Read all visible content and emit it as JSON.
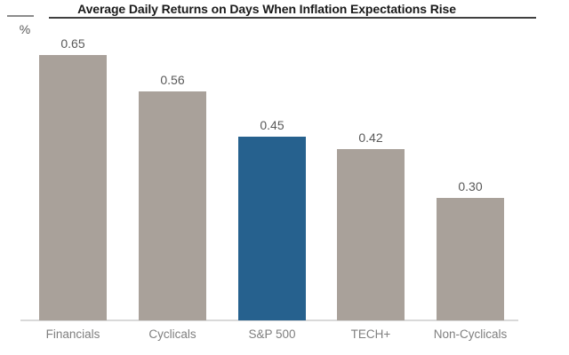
{
  "colors": {
    "background": "#ffffff",
    "bar_default": "#a9a19a",
    "bar_highlight": "#26618e",
    "title_text": "#1a1a1a",
    "title_underline": "#404040",
    "axis_dash": "#8c8c8c",
    "unit_text": "#595959",
    "value_label_text": "#595959",
    "category_label_text": "#7f7f7f",
    "baseline": "#d9d9d9"
  },
  "chart_data": {
    "type": "bar",
    "title": "Average Daily Returns on Days When Inflation Expectations Rise",
    "unit_label": "%",
    "xlabel": "",
    "ylabel": "%",
    "categories": [
      "Financials",
      "Cyclicals",
      "S&P 500",
      "TECH+",
      "Non-Cyclicals"
    ],
    "values": [
      0.65,
      0.56,
      0.45,
      0.42,
      0.3
    ],
    "value_labels": [
      "0.65",
      "0.56",
      "0.45",
      "0.42",
      "0.30"
    ],
    "highlight_category": "S&P 500",
    "highlight_index": 2,
    "ylim": [
      0,
      0.78
    ],
    "grid": false,
    "legend": false,
    "value_labels_position": "above-bars",
    "baseline_visible": true
  }
}
